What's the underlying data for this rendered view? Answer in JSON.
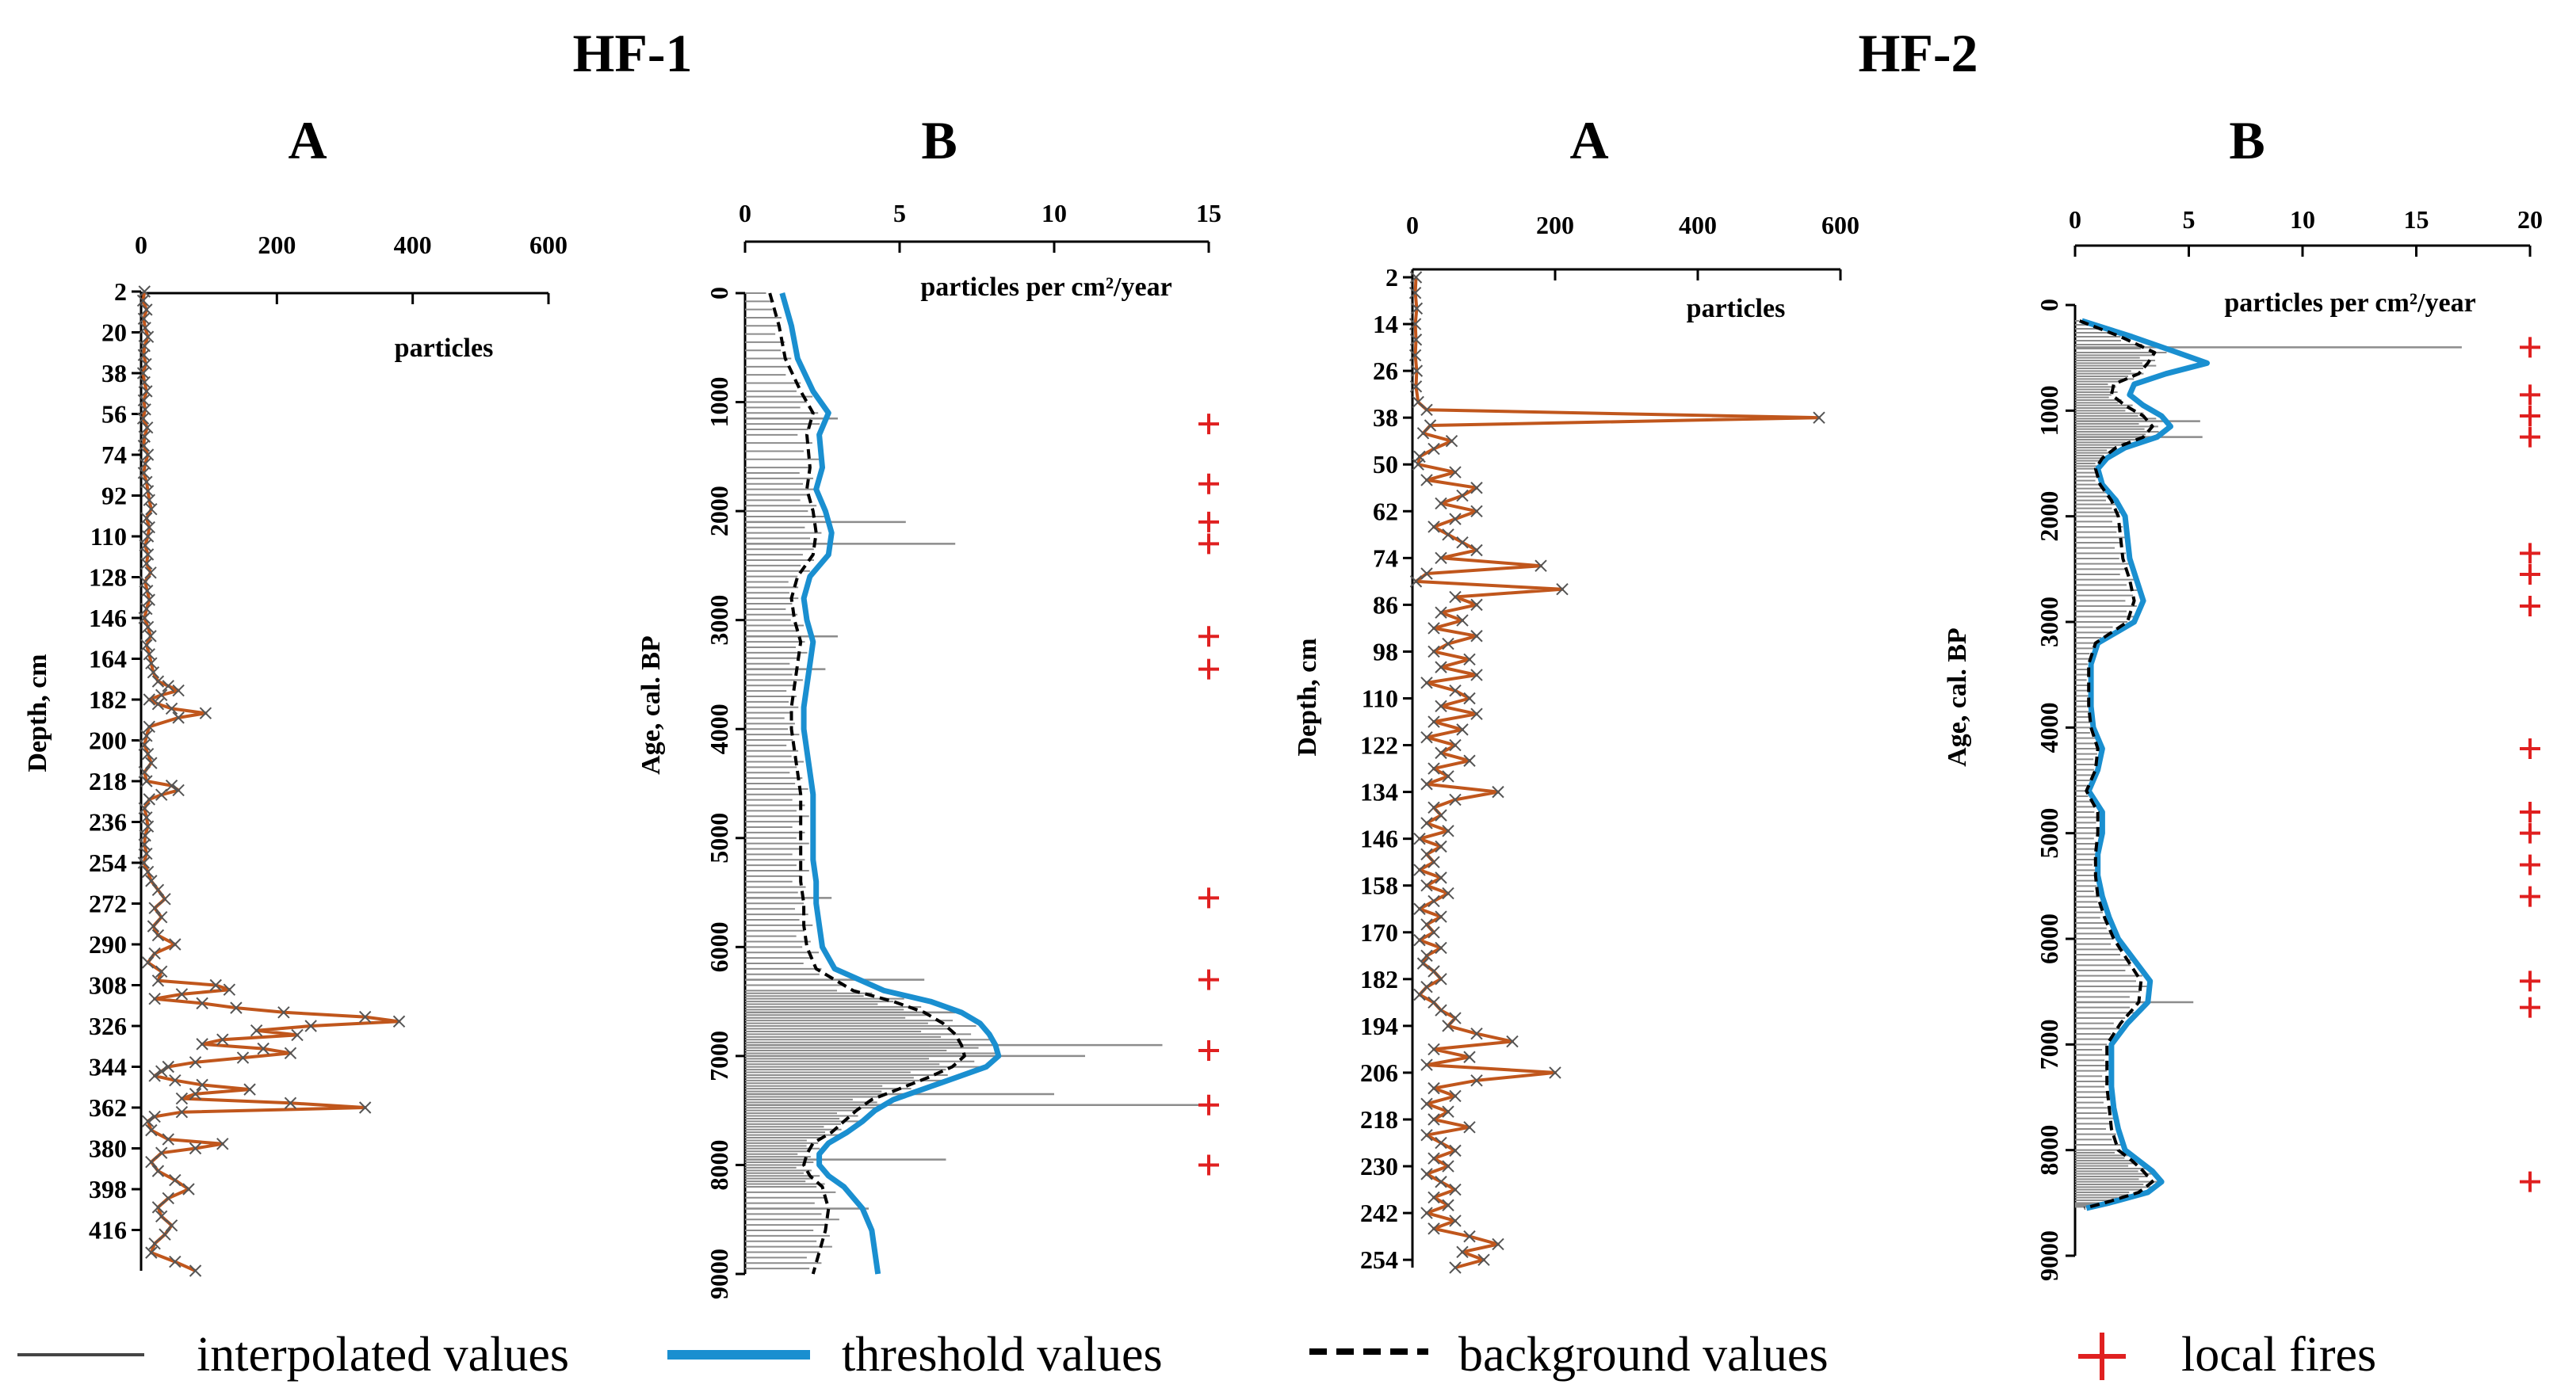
{
  "colors": {
    "charcoal": "#c0561c",
    "threshold": "#1a8fd0",
    "background": "#000000",
    "interpolated": "#8c8c8c",
    "local_fire": "#e02020"
  },
  "legend": {
    "interpolated": "interpolated values",
    "threshold": "threshold values",
    "background": "background values",
    "local_fires": "local fires"
  },
  "chart_data": [
    {
      "type": "line",
      "site": "HF-1",
      "panel": "A",
      "orientation": "vertical",
      "xlabel": "particles",
      "ylabel": "Depth, cm",
      "xlim": [
        0,
        600
      ],
      "xticks": [
        0,
        200,
        400,
        600
      ],
      "ylim": [
        2,
        434
      ],
      "yticks": [
        2,
        20,
        38,
        56,
        74,
        92,
        110,
        128,
        146,
        164,
        182,
        200,
        218,
        236,
        254,
        272,
        290,
        308,
        326,
        344,
        362,
        380,
        398,
        416
      ],
      "depth": [
        2,
        6,
        10,
        14,
        18,
        22,
        26,
        30,
        34,
        38,
        42,
        46,
        50,
        54,
        58,
        62,
        66,
        70,
        74,
        78,
        82,
        86,
        90,
        94,
        98,
        102,
        106,
        110,
        114,
        118,
        122,
        126,
        130,
        134,
        138,
        142,
        146,
        150,
        154,
        158,
        162,
        166,
        170,
        174,
        176,
        178,
        180,
        182,
        184,
        186,
        188,
        190,
        194,
        198,
        202,
        206,
        210,
        214,
        218,
        220,
        222,
        224,
        226,
        230,
        234,
        238,
        242,
        246,
        250,
        254,
        258,
        262,
        266,
        270,
        274,
        278,
        282,
        286,
        290,
        294,
        298,
        302,
        306,
        308,
        310,
        312,
        314,
        316,
        318,
        320,
        322,
        324,
        326,
        328,
        330,
        332,
        334,
        336,
        338,
        340,
        342,
        344,
        346,
        348,
        350,
        352,
        354,
        356,
        358,
        360,
        362,
        364,
        366,
        368,
        372,
        376,
        378,
        380,
        382,
        386,
        390,
        394,
        398,
        402,
        406,
        410,
        414,
        418,
        422,
        426,
        430,
        434
      ],
      "particles": [
        5,
        3,
        8,
        4,
        6,
        10,
        5,
        4,
        7,
        3,
        5,
        8,
        4,
        6,
        3,
        9,
        5,
        4,
        10,
        6,
        4,
        8,
        10,
        12,
        15,
        8,
        12,
        10,
        6,
        10,
        8,
        14,
        6,
        9,
        12,
        8,
        5,
        10,
        14,
        8,
        12,
        15,
        18,
        25,
        40,
        55,
        30,
        12,
        25,
        45,
        95,
        55,
        12,
        8,
        5,
        10,
        15,
        5,
        8,
        45,
        55,
        30,
        12,
        5,
        8,
        10,
        6,
        5,
        8,
        4,
        10,
        15,
        25,
        35,
        20,
        30,
        18,
        25,
        50,
        20,
        10,
        30,
        25,
        110,
        130,
        60,
        20,
        90,
        140,
        210,
        330,
        380,
        250,
        170,
        230,
        120,
        90,
        180,
        220,
        150,
        80,
        40,
        30,
        20,
        50,
        90,
        160,
        80,
        60,
        220,
        330,
        60,
        20,
        10,
        15,
        40,
        120,
        80,
        30,
        15,
        25,
        50,
        70,
        40,
        25,
        30,
        45,
        35,
        20,
        15,
        50,
        80
      ]
    },
    {
      "type": "line",
      "site": "HF-1",
      "panel": "B",
      "orientation": "vertical",
      "xlabel": "particles per cm²/year",
      "ylabel": "Age, cal. BP",
      "xlim": [
        0,
        15
      ],
      "xticks": [
        0,
        5,
        10,
        15
      ],
      "ylim": [
        0,
        9000
      ],
      "yticks": [
        0,
        1000,
        2000,
        3000,
        4000,
        5000,
        6000,
        7000,
        8000,
        9000
      ],
      "age": [
        0,
        300,
        600,
        900,
        1100,
        1300,
        1600,
        1800,
        2000,
        2200,
        2400,
        2600,
        2800,
        3000,
        3200,
        3400,
        3600,
        3800,
        4000,
        4200,
        4400,
        4600,
        4800,
        5000,
        5200,
        5400,
        5600,
        5800,
        6000,
        6200,
        6400,
        6500,
        6600,
        6700,
        6800,
        6900,
        7000,
        7100,
        7200,
        7300,
        7400,
        7500,
        7600,
        7700,
        7800,
        7900,
        8000,
        8100,
        8200,
        8400,
        8600,
        8800,
        9000
      ],
      "threshold": [
        1.2,
        1.5,
        1.7,
        2.2,
        2.7,
        2.4,
        2.5,
        2.3,
        2.6,
        2.8,
        2.7,
        2.1,
        1.9,
        2.0,
        2.2,
        2.1,
        2.0,
        1.9,
        1.9,
        2.0,
        2.1,
        2.2,
        2.2,
        2.2,
        2.2,
        2.3,
        2.3,
        2.4,
        2.5,
        2.9,
        4.5,
        6.0,
        7.0,
        7.6,
        7.9,
        8.1,
        8.2,
        7.8,
        6.8,
        5.8,
        4.8,
        4.2,
        3.8,
        3.3,
        2.7,
        2.4,
        2.4,
        2.7,
        3.2,
        3.8,
        4.1,
        4.2,
        4.3
      ],
      "background": [
        0.8,
        1.1,
        1.3,
        1.8,
        2.2,
        2.0,
        2.1,
        2.0,
        2.2,
        2.3,
        2.2,
        1.7,
        1.5,
        1.6,
        1.8,
        1.7,
        1.6,
        1.5,
        1.5,
        1.6,
        1.7,
        1.8,
        1.8,
        1.8,
        1.8,
        1.8,
        1.9,
        1.9,
        2.0,
        2.3,
        3.5,
        4.8,
        5.8,
        6.4,
        6.8,
        7.0,
        7.1,
        6.7,
        5.9,
        5.0,
        4.1,
        3.6,
        3.2,
        2.8,
        2.2,
        2.0,
        1.9,
        2.1,
        2.5,
        2.7,
        2.6,
        2.4,
        2.2
      ],
      "interpolated_peaks": [
        {
          "age": 1150,
          "value": 3.0
        },
        {
          "age": 2100,
          "value": 5.2
        },
        {
          "age": 2300,
          "value": 6.8
        },
        {
          "age": 3150,
          "value": 3.0
        },
        {
          "age": 3450,
          "value": 2.6
        },
        {
          "age": 5550,
          "value": 2.8
        },
        {
          "age": 6300,
          "value": 5.8
        },
        {
          "age": 6600,
          "value": 6.8
        },
        {
          "age": 6900,
          "value": 13.5
        },
        {
          "age": 7000,
          "value": 11.0
        },
        {
          "age": 7350,
          "value": 10.0
        },
        {
          "age": 7450,
          "value": 15.0
        },
        {
          "age": 7950,
          "value": 6.5
        },
        {
          "age": 8400,
          "value": 4.0
        }
      ],
      "local_fire_ages": [
        1200,
        1750,
        2100,
        2300,
        3150,
        3450,
        5550,
        6300,
        6950,
        7450,
        8000
      ]
    },
    {
      "type": "line",
      "site": "HF-2",
      "panel": "A",
      "orientation": "vertical",
      "xlabel": "particles",
      "ylabel": "Depth, cm",
      "xlim": [
        0,
        600
      ],
      "xticks": [
        0,
        200,
        400,
        600
      ],
      "ylim": [
        2,
        256
      ],
      "yticks": [
        2,
        14,
        26,
        38,
        50,
        62,
        74,
        86,
        98,
        110,
        122,
        134,
        146,
        158,
        170,
        182,
        194,
        206,
        218,
        230,
        242,
        254
      ],
      "depth": [
        2,
        6,
        10,
        14,
        18,
        22,
        26,
        30,
        34,
        36,
        38,
        40,
        42,
        44,
        46,
        48,
        50,
        52,
        54,
        56,
        58,
        60,
        62,
        64,
        66,
        68,
        70,
        72,
        74,
        76,
        78,
        80,
        82,
        84,
        86,
        88,
        90,
        92,
        94,
        96,
        98,
        100,
        102,
        104,
        106,
        108,
        110,
        112,
        114,
        116,
        118,
        120,
        122,
        124,
        126,
        128,
        130,
        132,
        134,
        136,
        138,
        140,
        142,
        144,
        146,
        148,
        150,
        152,
        154,
        156,
        158,
        160,
        162,
        164,
        166,
        168,
        170,
        172,
        174,
        176,
        178,
        180,
        182,
        184,
        186,
        188,
        190,
        192,
        194,
        196,
        198,
        200,
        202,
        204,
        206,
        208,
        210,
        212,
        214,
        216,
        218,
        220,
        222,
        224,
        226,
        228,
        230,
        232,
        234,
        236,
        238,
        240,
        242,
        244,
        246,
        248,
        250,
        252,
        254,
        256
      ],
      "particles": [
        5,
        4,
        6,
        4,
        5,
        4,
        6,
        5,
        8,
        20,
        570,
        25,
        15,
        55,
        30,
        10,
        8,
        60,
        20,
        90,
        70,
        40,
        90,
        60,
        30,
        50,
        70,
        90,
        40,
        180,
        20,
        5,
        210,
        60,
        90,
        40,
        70,
        30,
        90,
        50,
        30,
        80,
        40,
        90,
        20,
        60,
        80,
        40,
        90,
        30,
        70,
        20,
        60,
        40,
        80,
        30,
        50,
        20,
        120,
        60,
        30,
        40,
        20,
        50,
        10,
        40,
        20,
        30,
        10,
        40,
        20,
        50,
        30,
        10,
        40,
        20,
        30,
        10,
        40,
        20,
        15,
        30,
        40,
        20,
        10,
        30,
        40,
        60,
        50,
        90,
        140,
        30,
        80,
        20,
        200,
        90,
        30,
        60,
        20,
        50,
        30,
        80,
        20,
        40,
        60,
        30,
        50,
        20,
        40,
        60,
        30,
        50,
        20,
        60,
        30,
        80,
        120,
        70,
        100,
        60
      ]
    },
    {
      "type": "line",
      "site": "HF-2",
      "panel": "B",
      "orientation": "vertical",
      "xlabel": "particles per cm²/year",
      "ylabel": "Age, cal. BP",
      "xlim": [
        0,
        20
      ],
      "xticks": [
        0,
        5,
        10,
        15,
        20
      ],
      "ylim": [
        0,
        9000
      ],
      "yticks": [
        0,
        1000,
        2000,
        3000,
        4000,
        5000,
        6000,
        7000,
        8000,
        9000
      ],
      "age": [
        150,
        300,
        450,
        550,
        650,
        750,
        850,
        950,
        1050,
        1150,
        1250,
        1350,
        1450,
        1550,
        1700,
        1850,
        2000,
        2200,
        2400,
        2600,
        2800,
        3000,
        3200,
        3400,
        3600,
        3800,
        4000,
        4200,
        4400,
        4600,
        4800,
        5000,
        5200,
        5400,
        5600,
        5800,
        6000,
        6200,
        6400,
        6600,
        6800,
        7000,
        7200,
        7400,
        7600,
        7800,
        8000,
        8100,
        8200,
        8300,
        8400,
        8500,
        8550
      ],
      "threshold": [
        0.3,
        2.5,
        4.5,
        5.8,
        4.0,
        2.6,
        2.4,
        3.0,
        3.8,
        4.2,
        3.6,
        2.2,
        1.4,
        1.0,
        1.2,
        1.8,
        2.2,
        2.3,
        2.4,
        2.7,
        3.0,
        2.6,
        1.0,
        0.7,
        0.7,
        0.7,
        0.8,
        1.2,
        1.0,
        0.6,
        1.2,
        1.2,
        1.0,
        1.0,
        1.2,
        1.5,
        1.9,
        2.6,
        3.3,
        3.2,
        2.3,
        1.6,
        1.6,
        1.6,
        1.7,
        1.9,
        2.2,
        2.8,
        3.4,
        3.8,
        3.2,
        1.5,
        0.5
      ],
      "background": [
        0.2,
        2.0,
        3.5,
        3.2,
        2.8,
        1.7,
        1.6,
        2.2,
        3.0,
        3.4,
        3.0,
        1.8,
        1.2,
        0.9,
        1.1,
        1.6,
        1.9,
        2.0,
        2.1,
        2.4,
        2.6,
        2.3,
        0.9,
        0.6,
        0.6,
        0.6,
        0.7,
        1.0,
        0.9,
        0.5,
        1.0,
        1.0,
        0.9,
        0.9,
        1.0,
        1.3,
        1.7,
        2.3,
        2.9,
        2.8,
        2.0,
        1.4,
        1.4,
        1.4,
        1.5,
        1.6,
        1.9,
        2.5,
        3.0,
        3.4,
        2.8,
        1.3,
        0.4
      ],
      "interpolated_peaks": [
        {
          "age": 400,
          "value": 17.0
        },
        {
          "age": 1100,
          "value": 5.5
        },
        {
          "age": 1250,
          "value": 5.6
        },
        {
          "age": 6600,
          "value": 5.2
        }
      ],
      "local_fire_ages": [
        400,
        850,
        1050,
        1250,
        2350,
        2550,
        2850,
        4200,
        4800,
        5000,
        5300,
        5600,
        6400,
        6650,
        8300
      ]
    }
  ]
}
